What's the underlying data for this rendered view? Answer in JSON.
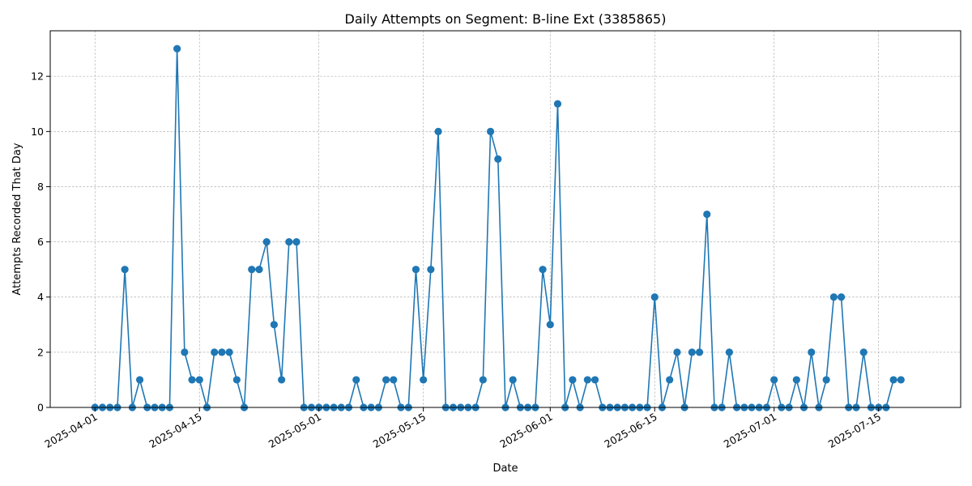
{
  "chart_data": {
    "type": "line",
    "title": "Daily Attempts on Segment: B-line Ext (3385865)",
    "xlabel": "Date",
    "ylabel": "Attempts Recorded That Day",
    "x_start": "2025-04-01",
    "x_end": "2025-07-18",
    "xlim": [
      "2025-03-26",
      "2025-07-26"
    ],
    "ylim": [
      0,
      13.65
    ],
    "x_ticks": [
      "2025-04-01",
      "2025-04-15",
      "2025-05-01",
      "2025-05-15",
      "2025-06-01",
      "2025-06-15",
      "2025-07-01",
      "2025-07-15"
    ],
    "y_ticks": [
      0,
      2,
      4,
      6,
      8,
      10,
      12
    ],
    "grid": true,
    "line_color": "#1f77b4",
    "marker": "circle",
    "values": [
      0,
      0,
      0,
      0,
      5,
      0,
      1,
      0,
      0,
      0,
      0,
      13,
      2,
      1,
      1,
      0,
      2,
      2,
      2,
      1,
      0,
      5,
      5,
      6,
      3,
      1,
      6,
      6,
      0,
      0,
      0,
      0,
      0,
      0,
      0,
      1,
      0,
      0,
      0,
      1,
      1,
      0,
      0,
      5,
      1,
      5,
      10,
      0,
      0,
      0,
      0,
      0,
      1,
      10,
      9,
      0,
      1,
      0,
      0,
      0,
      5,
      3,
      11,
      0,
      1,
      0,
      1,
      1,
      0,
      0,
      0,
      0,
      0,
      0,
      0,
      4,
      0,
      1,
      2,
      0,
      2,
      2,
      7,
      0,
      0,
      2,
      0,
      0,
      0,
      0,
      0,
      1,
      0,
      0,
      1,
      0,
      2,
      0,
      1,
      4,
      4,
      0,
      0,
      2,
      0,
      0,
      0,
      1,
      1
    ]
  }
}
